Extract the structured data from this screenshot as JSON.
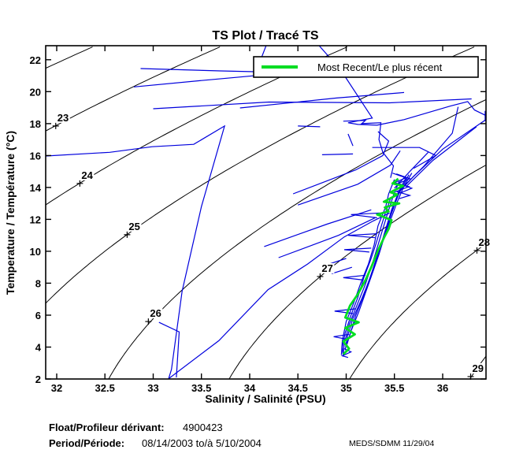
{
  "title": "TS Plot / Tracé TS",
  "legend": {
    "label": "Most Recent/Le plus récent",
    "line_color": "#00dd22"
  },
  "axes": {
    "xlabel": "Salinity / Salinité (PSU)",
    "ylabel": "Temperature / Température (°C)"
  },
  "annotations": {
    "float_label": "Float/Profileur dérivant:",
    "float_value": "4900423",
    "period_label": "Period/Période:",
    "period_value": "08/14/2003  to/à  5/10/2004",
    "credit": "MEDS/SDMM  11/29/04"
  },
  "chart_data": {
    "type": "line",
    "title": "TS Plot / Tracé TS",
    "xlabel": "Salinity / Salinité (PSU)",
    "ylabel": "Temperature / Température (°C)",
    "xlim": [
      31.886,
      36.449
    ],
    "ylim": [
      2,
      22.88
    ],
    "xtick_values": [
      32,
      32.5,
      33,
      33.5,
      34,
      34.5,
      35,
      35.5,
      36
    ],
    "xtick_labels": [
      "32",
      "32.5",
      "33",
      "33.5",
      "34",
      "34.5",
      "35",
      "35.5",
      "36"
    ],
    "ytick_values": [
      2,
      4,
      6,
      8,
      10,
      12,
      14,
      16,
      18,
      20,
      22
    ],
    "ytick_labels": [
      "2",
      "4",
      "6",
      "8",
      "10",
      "12",
      "14",
      "16",
      "18",
      "20",
      "22"
    ],
    "grid": false,
    "legend_position": "upper center",
    "density_contours": {
      "note": "sigma-t isopycnals (EOS-80, p=0)",
      "levels": [
        22,
        23,
        24,
        25,
        26,
        27,
        28,
        29
      ],
      "color": "#000000",
      "label_points": [
        {
          "level": 23,
          "s": 31.99,
          "t": 17.85
        },
        {
          "level": 24,
          "s": 32.24,
          "t": 14.25
        },
        {
          "level": 25,
          "s": 32.73,
          "t": 11.04
        },
        {
          "level": 26,
          "s": 32.95,
          "t": 5.6
        },
        {
          "level": 27,
          "s": 34.73,
          "t": 8.42
        },
        {
          "level": 28,
          "s": 36.355,
          "t": 10.05
        },
        {
          "level": 29,
          "s": 36.29,
          "t": 2.15
        }
      ]
    },
    "profiles": {
      "color": "#0000dd",
      "polylines": [
        [
          [
            31.886,
            15.97
          ],
          [
            32.55,
            16.2
          ],
          [
            32.99,
            16.55
          ],
          [
            33.42,
            16.7
          ],
          [
            33.74,
            17.85
          ],
          [
            33.5,
            12.8
          ],
          [
            33.3,
            7.5
          ],
          [
            33.19,
            2.6
          ],
          [
            33.16,
            2.02
          ]
        ],
        [
          [
            33.16,
            2.02
          ],
          [
            33.68,
            4.4
          ],
          [
            34.19,
            7.6
          ],
          [
            34.6,
            9.2
          ],
          [
            34.98,
            10.9
          ],
          [
            35.28,
            11.9
          ],
          [
            35.45,
            12.4
          ]
        ],
        [
          [
            33.06,
            5.55
          ],
          [
            33.27,
            4.95
          ],
          [
            33.24,
            2.1
          ]
        ],
        [
          [
            32.87,
            21.45
          ],
          [
            33.7,
            21.3
          ],
          [
            34.4,
            21.2
          ],
          [
            35.1,
            21.1
          ],
          [
            35.78,
            21.0
          ]
        ],
        [
          [
            32.8,
            20.3
          ],
          [
            33.5,
            20.7
          ],
          [
            34.05,
            21.0
          ],
          [
            34.17,
            22.88
          ]
        ],
        [
          [
            33.0,
            18.93
          ],
          [
            34.2,
            19.35
          ],
          [
            35.45,
            19.3
          ],
          [
            36.3,
            19.55
          ]
        ],
        [
          [
            33.9,
            18.98
          ],
          [
            34.9,
            19.6
          ],
          [
            35.6,
            19.95
          ]
        ],
        [
          [
            34.72,
            22.88
          ],
          [
            34.95,
            21.3
          ],
          [
            35.27,
            18.35
          ],
          [
            35.02,
            18.05
          ],
          [
            35.12,
            17.95
          ],
          [
            35.32,
            17.9
          ],
          [
            35.6,
            18.25
          ],
          [
            36.08,
            19.1
          ],
          [
            36.26,
            19.38
          ],
          [
            36.33,
            18.85
          ],
          [
            36.449,
            18.5
          ]
        ],
        [
          [
            34.97,
            18.15
          ],
          [
            35.2,
            18.2
          ],
          [
            35.16,
            18.0
          ],
          [
            35.36,
            18.05
          ],
          [
            35.34,
            17.0
          ],
          [
            35.38,
            16.2
          ],
          [
            35.49,
            15.35
          ],
          [
            35.46,
            14.6
          ]
        ],
        [
          [
            36.449,
            18.25
          ],
          [
            36.0,
            16.4
          ],
          [
            35.7,
            14.7
          ],
          [
            35.53,
            13.6
          ]
        ],
        [
          [
            36.35,
            17.8
          ],
          [
            35.9,
            15.7
          ],
          [
            35.62,
            14.05
          ]
        ],
        [
          [
            36.16,
            19.05
          ],
          [
            36.1,
            17.4
          ],
          [
            35.8,
            15.3
          ],
          [
            35.56,
            13.85
          ]
        ],
        [
          [
            35.85,
            16.2
          ],
          [
            35.66,
            15.0
          ],
          [
            35.5,
            13.95
          ]
        ],
        [
          [
            35.27,
            16.5
          ],
          [
            35.76,
            16.5
          ],
          [
            35.93,
            16.0
          ],
          [
            35.7,
            15.2
          ]
        ],
        [
          [
            34.75,
            16.05
          ],
          [
            35.07,
            16.1
          ]
        ],
        [
          [
            36.44,
            18.15
          ],
          [
            36.44,
            18.8
          ]
        ],
        [
          [
            34.45,
            13.6
          ],
          [
            35.1,
            15.1
          ],
          [
            35.38,
            16.0
          ],
          [
            35.44,
            16.9
          ],
          [
            35.33,
            17.5
          ]
        ],
        [
          [
            34.5,
            12.9
          ],
          [
            35.12,
            14.2
          ],
          [
            35.46,
            15.4
          ],
          [
            35.56,
            16.3
          ]
        ],
        [
          [
            34.15,
            10.3
          ],
          [
            34.8,
            11.7
          ],
          [
            35.26,
            12.6
          ]
        ],
        [
          [
            34.3,
            9.6
          ],
          [
            34.92,
            11.0
          ],
          [
            35.3,
            12.1
          ]
        ],
        [
          [
            34.5,
            17.85
          ],
          [
            34.73,
            17.8
          ]
        ],
        [
          [
            35.02,
            17.35
          ],
          [
            35.07,
            16.6
          ]
        ],
        [
          [
            35.5,
            14.5
          ],
          [
            35.44,
            13.6
          ],
          [
            35.41,
            12.8
          ],
          [
            35.33,
            11.6
          ],
          [
            35.29,
            10.4
          ],
          [
            35.23,
            9.2
          ],
          [
            35.15,
            8.0
          ],
          [
            35.08,
            6.8
          ],
          [
            35.0,
            5.6
          ],
          [
            34.96,
            4.4
          ],
          [
            34.95,
            3.5
          ]
        ],
        [
          [
            35.55,
            14.4
          ],
          [
            35.49,
            13.5
          ],
          [
            35.43,
            12.4
          ],
          [
            35.37,
            11.2
          ],
          [
            35.31,
            10.0
          ],
          [
            35.26,
            9.0
          ],
          [
            35.19,
            7.8
          ],
          [
            35.11,
            6.6
          ],
          [
            35.03,
            5.4
          ],
          [
            34.98,
            4.2
          ],
          [
            34.97,
            3.6
          ]
        ],
        [
          [
            35.58,
            14.2
          ],
          [
            35.52,
            13.2
          ],
          [
            35.46,
            12.2
          ],
          [
            35.4,
            11.0
          ],
          [
            35.34,
            9.8
          ],
          [
            35.27,
            8.6
          ],
          [
            35.2,
            7.4
          ],
          [
            35.13,
            6.2
          ],
          [
            35.05,
            5.0
          ],
          [
            35.0,
            4.0
          ]
        ],
        [
          [
            35.62,
            14.6
          ],
          [
            35.55,
            13.8
          ],
          [
            35.47,
            12.6
          ],
          [
            35.42,
            11.5
          ],
          [
            35.35,
            10.2
          ],
          [
            35.3,
            9.3
          ],
          [
            35.24,
            8.2
          ],
          [
            35.16,
            7.0
          ],
          [
            35.07,
            5.8
          ],
          [
            35.01,
            4.6
          ],
          [
            34.99,
            3.8
          ]
        ],
        [
          [
            35.65,
            14.8
          ],
          [
            35.58,
            14.0
          ],
          [
            35.5,
            13.0
          ],
          [
            35.44,
            12.0
          ],
          [
            35.38,
            10.8
          ],
          [
            35.32,
            9.6
          ],
          [
            35.25,
            8.4
          ],
          [
            35.18,
            7.2
          ],
          [
            35.1,
            6.0
          ],
          [
            35.04,
            4.8
          ],
          [
            35.0,
            4.1
          ]
        ],
        [
          [
            35.46,
            13.3
          ],
          [
            35.4,
            12.3
          ],
          [
            35.35,
            11.3
          ],
          [
            35.3,
            10.3
          ],
          [
            35.25,
            9.4
          ],
          [
            35.18,
            8.3
          ],
          [
            35.12,
            7.1
          ],
          [
            35.05,
            6.0
          ],
          [
            34.99,
            4.9
          ],
          [
            34.96,
            4.0
          ],
          [
            34.97,
            3.4
          ]
        ],
        [
          [
            35.68,
            14.9
          ],
          [
            35.6,
            14.1
          ],
          [
            35.53,
            13.1
          ],
          [
            35.48,
            12.3
          ],
          [
            35.41,
            11.2
          ],
          [
            35.36,
            10.3
          ],
          [
            35.3,
            9.5
          ]
        ],
        [
          [
            35.35,
            12.4
          ],
          [
            35.05,
            12.3
          ],
          [
            35.32,
            12.1
          ]
        ],
        [
          [
            35.32,
            11.1
          ],
          [
            35.02,
            11.0
          ],
          [
            35.3,
            10.85
          ]
        ],
        [
          [
            35.26,
            10.2
          ],
          [
            34.98,
            10.1
          ],
          [
            35.24,
            9.95
          ]
        ],
        [
          [
            35.2,
            8.5
          ],
          [
            34.97,
            8.35
          ],
          [
            35.18,
            8.2
          ]
        ],
        [
          [
            35.1,
            6.4
          ],
          [
            34.88,
            6.25
          ],
          [
            35.07,
            6.1
          ]
        ],
        [
          [
            35.03,
            4.8
          ],
          [
            34.87,
            4.65
          ],
          [
            35.0,
            4.5
          ]
        ],
        [
          [
            34.98,
            3.9
          ],
          [
            35.05,
            3.7
          ],
          [
            34.96,
            3.45
          ],
          [
            35.02,
            3.35
          ]
        ],
        [
          [
            34.77,
            9.1
          ],
          [
            35.0,
            9.55
          ]
        ],
        [
          [
            34.85,
            8.6
          ],
          [
            35.06,
            9.0
          ]
        ],
        [
          [
            35.48,
            14.9
          ],
          [
            35.62,
            14.6
          ],
          [
            35.5,
            14.3
          ],
          [
            35.65,
            14.05
          ],
          [
            35.52,
            13.75
          ],
          [
            35.66,
            13.5
          ],
          [
            35.55,
            13.3
          ]
        ],
        [
          [
            35.52,
            14.85
          ],
          [
            35.66,
            14.55
          ],
          [
            35.54,
            14.25
          ],
          [
            35.68,
            13.95
          ],
          [
            35.56,
            13.65
          ]
        ]
      ]
    },
    "most_recent": {
      "color": "#00dd22",
      "polyline": [
        [
          35.54,
          14.55
        ],
        [
          35.48,
          14.25
        ],
        [
          35.59,
          14.1
        ],
        [
          35.46,
          13.7
        ],
        [
          35.53,
          13.55
        ],
        [
          35.39,
          13.1
        ],
        [
          35.55,
          13.0
        ],
        [
          35.4,
          12.75
        ],
        [
          35.44,
          12.5
        ],
        [
          35.32,
          12.3
        ],
        [
          35.37,
          12.2
        ],
        [
          35.47,
          11.95
        ],
        [
          35.44,
          11.4
        ],
        [
          35.4,
          10.95
        ],
        [
          35.36,
          10.45
        ],
        [
          35.33,
          10.05
        ],
        [
          35.29,
          9.45
        ],
        [
          35.26,
          9.0
        ],
        [
          35.2,
          8.2
        ],
        [
          35.12,
          7.3
        ],
        [
          35.04,
          6.6
        ],
        [
          34.99,
          5.85
        ],
        [
          35.13,
          5.55
        ],
        [
          34.99,
          5.2
        ],
        [
          35.09,
          4.8
        ],
        [
          34.97,
          4.35
        ],
        [
          35.03,
          3.9
        ],
        [
          34.97,
          3.55
        ]
      ]
    }
  }
}
